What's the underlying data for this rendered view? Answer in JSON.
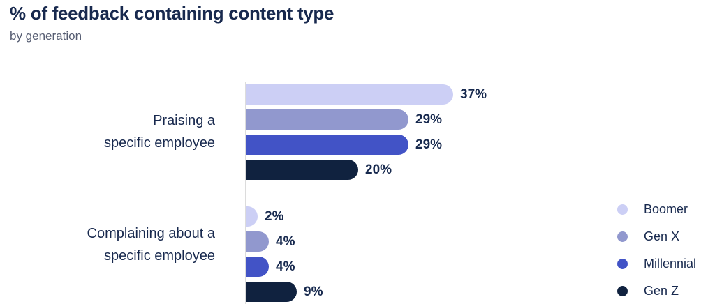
{
  "title": "% of feedback containing content type",
  "subtitle": "by generation",
  "colors": {
    "heading_text": "#18294e",
    "subtitle_text": "#565d72",
    "value_label_text": "#17294e",
    "axis_line": "#dcdcdc",
    "background": "#ffffff"
  },
  "category_label_lines": [
    [
      "Praising a",
      "specific employee"
    ],
    [
      "Complaining about a",
      "specific employee"
    ]
  ],
  "legend": {
    "position": "right",
    "items": [
      {
        "label": "Boomer",
        "color": "#cccff5"
      },
      {
        "label": "Gen X",
        "color": "#9198ce"
      },
      {
        "label": "Millennial",
        "color": "#4253c6"
      },
      {
        "label": "Gen Z",
        "color": "#10223f"
      }
    ]
  },
  "chart_data": {
    "type": "bar",
    "orientation": "horizontal",
    "title": "% of feedback containing content type",
    "subtitle": "by generation",
    "categories": [
      "Praising a specific employee",
      "Complaining about a specific employee"
    ],
    "series": [
      {
        "name": "Boomer",
        "color": "#cccff5",
        "values": [
          37,
          2
        ]
      },
      {
        "name": "Gen X",
        "color": "#9198ce",
        "values": [
          29,
          4
        ]
      },
      {
        "name": "Millennial",
        "color": "#4253c6",
        "values": [
          29,
          4
        ]
      },
      {
        "name": "Gen Z",
        "color": "#10223f",
        "values": [
          20,
          9
        ]
      }
    ],
    "value_labels": [
      [
        "37%",
        "29%",
        "29%",
        "20%"
      ],
      [
        "2%",
        "4%",
        "4%",
        "9%"
      ]
    ],
    "value_suffix": "%",
    "xlim": [
      0,
      37
    ],
    "grid": false,
    "legend_position": "right"
  }
}
